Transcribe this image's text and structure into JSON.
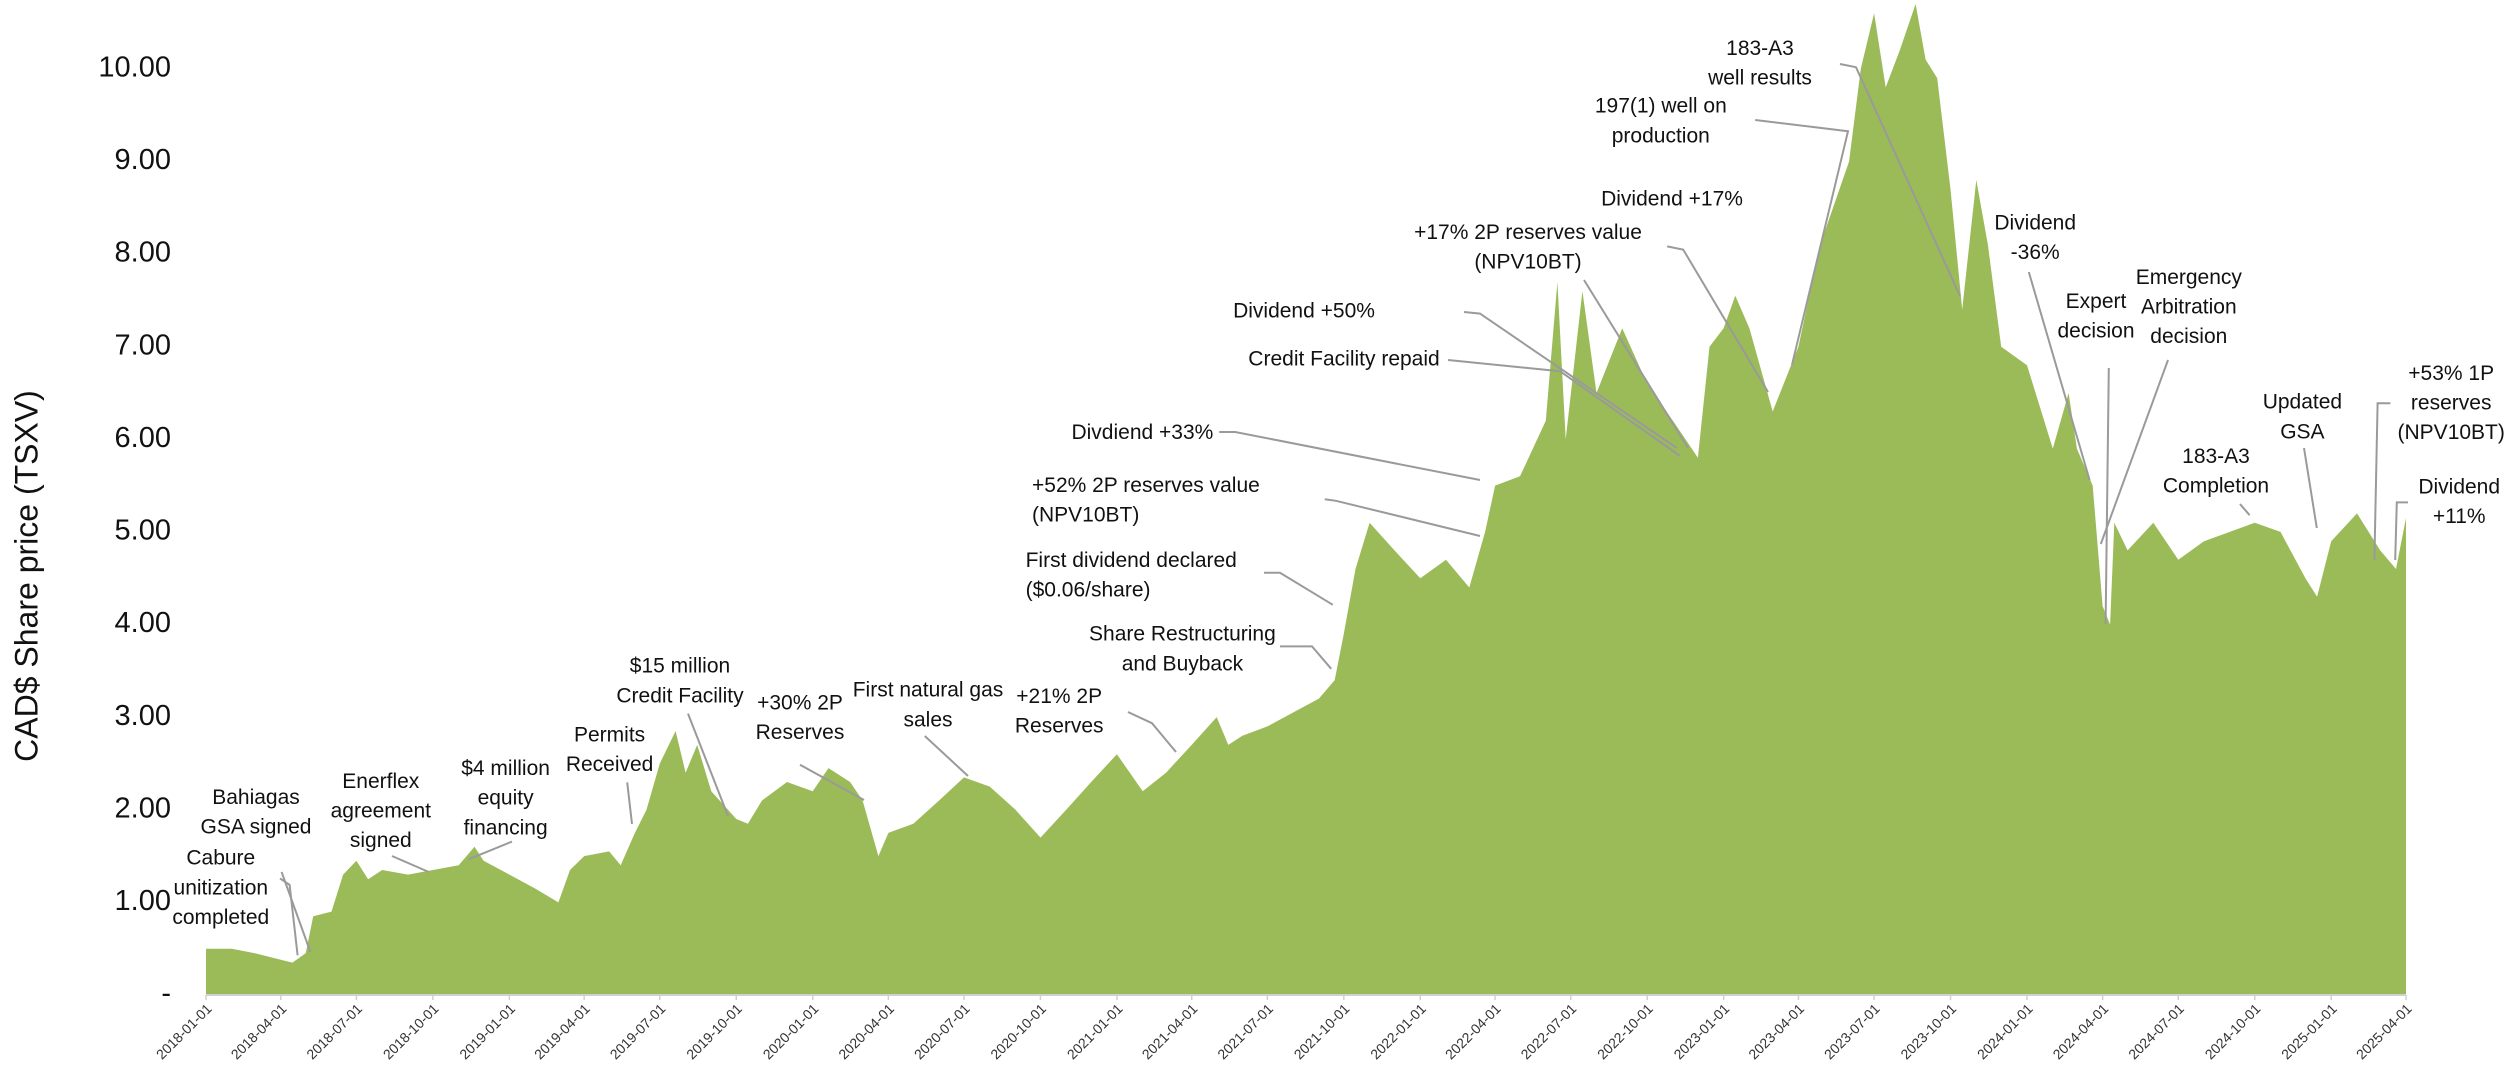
{
  "chart_data": {
    "type": "area",
    "y_label": "CAD$ Share price (TSXV)",
    "color": "#9bbb59",
    "grid": false,
    "ylim": [
      0,
      10.7
    ],
    "yticks": [
      {
        "value": 0,
        "label": "-"
      },
      {
        "value": 1,
        "label": "1.00"
      },
      {
        "value": 2,
        "label": "2.00"
      },
      {
        "value": 3,
        "label": "3.00"
      },
      {
        "value": 4,
        "label": "4.00"
      },
      {
        "value": 5,
        "label": "5.00"
      },
      {
        "value": 6,
        "label": "6.00"
      },
      {
        "value": 7,
        "label": "7.00"
      },
      {
        "value": 8,
        "label": "8.00"
      },
      {
        "value": 9,
        "label": "9.00"
      },
      {
        "value": 10,
        "label": "10.00"
      }
    ],
    "xlim": [
      "2018-01-01",
      "2025-04-01"
    ],
    "xticks": [
      "2018-01-01",
      "2018-04-01",
      "2018-07-01",
      "2018-10-01",
      "2019-01-01",
      "2019-04-01",
      "2019-07-01",
      "2019-10-01",
      "2020-01-01",
      "2020-04-01",
      "2020-07-01",
      "2020-10-01",
      "2021-01-01",
      "2021-04-01",
      "2021-07-01",
      "2021-10-01",
      "2022-01-01",
      "2022-04-01",
      "2022-07-01",
      "2022-10-01",
      "2023-01-01",
      "2023-04-01",
      "2023-07-01",
      "2023-10-01",
      "2024-01-01",
      "2024-04-01",
      "2024-07-01",
      "2024-10-01",
      "2025-01-01",
      "2025-04-01"
    ],
    "x": [
      "2018-01-01",
      "2018-02-01",
      "2018-03-01",
      "2018-04-01",
      "2018-04-15",
      "2018-05-01",
      "2018-05-10",
      "2018-06-01",
      "2018-06-15",
      "2018-07-01",
      "2018-07-15",
      "2018-08-01",
      "2018-09-01",
      "2018-10-01",
      "2018-11-01",
      "2018-11-20",
      "2018-12-01",
      "2019-01-01",
      "2019-02-01",
      "2019-03-01",
      "2019-03-15",
      "2019-04-01",
      "2019-05-01",
      "2019-05-15",
      "2019-06-01",
      "2019-06-15",
      "2019-07-01",
      "2019-07-20",
      "2019-08-01",
      "2019-08-15",
      "2019-09-01",
      "2019-10-01",
      "2019-10-15",
      "2019-11-01",
      "2019-12-01",
      "2020-01-01",
      "2020-01-20",
      "2020-02-15",
      "2020-03-01",
      "2020-03-20",
      "2020-04-01",
      "2020-05-01",
      "2020-06-01",
      "2020-07-01",
      "2020-08-01",
      "2020-09-01",
      "2020-10-01",
      "2020-11-01",
      "2020-12-01",
      "2021-01-01",
      "2021-02-01",
      "2021-03-01",
      "2021-04-01",
      "2021-05-01",
      "2021-05-15",
      "2021-06-01",
      "2021-07-01",
      "2021-08-01",
      "2021-09-01",
      "2021-09-20",
      "2021-10-01",
      "2021-10-15",
      "2021-11-01",
      "2021-12-01",
      "2022-01-01",
      "2022-02-01",
      "2022-03-01",
      "2022-03-20",
      "2022-04-01",
      "2022-05-01",
      "2022-06-01",
      "2022-06-15",
      "2022-06-25",
      "2022-07-15",
      "2022-08-01",
      "2022-09-01",
      "2022-10-01",
      "2022-11-01",
      "2022-12-01",
      "2022-12-15",
      "2023-01-01",
      "2023-01-15",
      "2023-02-01",
      "2023-03-01",
      "2023-04-01",
      "2023-04-20",
      "2023-05-01",
      "2023-06-01",
      "2023-06-15",
      "2023-07-01",
      "2023-07-15",
      "2023-08-01",
      "2023-08-20",
      "2023-09-01",
      "2023-09-15",
      "2023-10-01",
      "2023-10-15",
      "2023-11-01",
      "2023-11-15",
      "2023-12-01",
      "2024-01-01",
      "2024-02-01",
      "2024-02-20",
      "2024-03-01",
      "2024-03-20",
      "2024-04-01",
      "2024-04-10",
      "2024-04-15",
      "2024-05-01",
      "2024-06-01",
      "2024-07-01",
      "2024-08-01",
      "2024-09-01",
      "2024-10-01",
      "2024-11-01",
      "2024-12-01",
      "2024-12-15",
      "2025-01-01",
      "2025-02-01",
      "2025-03-01",
      "2025-03-20",
      "2025-04-01"
    ],
    "values": [
      0.5,
      0.5,
      0.45,
      0.38,
      0.35,
      0.45,
      0.85,
      0.9,
      1.3,
      1.45,
      1.25,
      1.35,
      1.3,
      1.35,
      1.4,
      1.6,
      1.45,
      1.3,
      1.15,
      1.0,
      1.35,
      1.5,
      1.55,
      1.4,
      1.75,
      2.0,
      2.5,
      2.85,
      2.4,
      2.7,
      2.2,
      1.9,
      1.85,
      2.1,
      2.3,
      2.2,
      2.45,
      2.3,
      2.1,
      1.5,
      1.75,
      1.85,
      2.1,
      2.35,
      2.25,
      2.0,
      1.7,
      2.0,
      2.3,
      2.6,
      2.2,
      2.4,
      2.7,
      3.0,
      2.7,
      2.8,
      2.9,
      3.05,
      3.2,
      3.4,
      3.9,
      4.6,
      5.1,
      4.8,
      4.5,
      4.7,
      4.4,
      5.0,
      5.5,
      5.6,
      6.2,
      7.7,
      6.0,
      7.6,
      6.5,
      7.2,
      6.6,
      6.2,
      5.8,
      7.0,
      7.2,
      7.55,
      7.2,
      6.3,
      7.0,
      7.8,
      8.2,
      9.0,
      10.0,
      10.6,
      9.8,
      10.2,
      10.7,
      10.1,
      9.9,
      8.7,
      7.4,
      8.8,
      8.1,
      7.0,
      6.8,
      5.9,
      6.5,
      5.9,
      5.5,
      4.2,
      4.0,
      5.1,
      4.8,
      5.1,
      4.7,
      4.9,
      5.0,
      5.1,
      5.0,
      4.5,
      4.3,
      4.9,
      5.2,
      4.8,
      4.6,
      5.15
    ],
    "annotations": [
      {
        "lines": [
          "Cabure",
          "unitization",
          "completed"
        ]
      },
      {
        "lines": [
          "Bahiagas",
          "GSA signed"
        ]
      },
      {
        "lines": [
          "Enerflex",
          "agreement",
          "signed"
        ]
      },
      {
        "lines": [
          "$4 million",
          "equity",
          "financing"
        ]
      },
      {
        "lines": [
          "Permits",
          "Received"
        ]
      },
      {
        "lines": [
          "$15 million",
          "Credit Facility"
        ]
      },
      {
        "lines": [
          "+30% 2P",
          "Reserves"
        ]
      },
      {
        "lines": [
          "First natural gas",
          "sales"
        ]
      },
      {
        "lines": [
          "+21% 2P",
          "Reserves"
        ]
      },
      {
        "lines": [
          "Share Restructuring",
          "and Buyback"
        ]
      },
      {
        "lines": [
          "First dividend declared",
          "($0.06/share)"
        ]
      },
      {
        "lines": [
          "+52% 2P reserves value",
          "(NPV10BT)"
        ]
      },
      {
        "lines": [
          "Divdiend +33%"
        ]
      },
      {
        "lines": [
          "Dividend +50%"
        ]
      },
      {
        "lines": [
          "Credit Facility repaid"
        ]
      },
      {
        "lines": [
          "+17% 2P reserves value",
          "(NPV10BT)"
        ]
      },
      {
        "lines": [
          "Dividend +17%"
        ]
      },
      {
        "lines": [
          "197(1) well on",
          "production"
        ]
      },
      {
        "lines": [
          "183-A3",
          "well results"
        ]
      },
      {
        "lines": [
          "Dividend",
          "-36%"
        ]
      },
      {
        "lines": [
          "Expert",
          "decision"
        ]
      },
      {
        "lines": [
          "Emergency",
          "Arbitration",
          "decision"
        ]
      },
      {
        "lines": [
          "183-A3",
          "Completion"
        ]
      },
      {
        "lines": [
          "Updated",
          "GSA"
        ]
      },
      {
        "lines": [
          "+53% 1P",
          "reserves",
          "(NPV10BT)"
        ]
      },
      {
        "lines": [
          "Dividend",
          "+11%"
        ]
      }
    ]
  }
}
